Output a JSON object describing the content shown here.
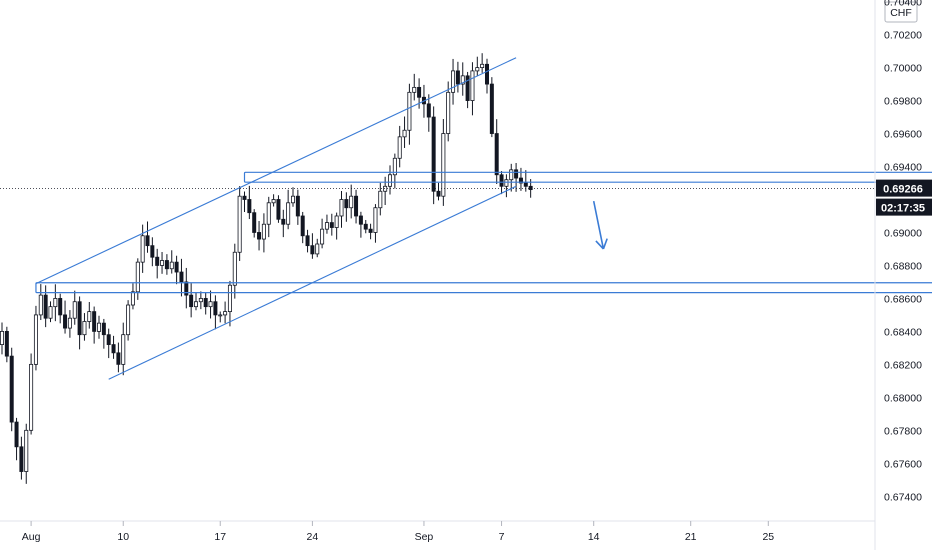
{
  "chart_data": {
    "type": "candlestick",
    "currency_label": "CHF",
    "current_price": "0.69266",
    "countdown": "02:17:35",
    "y_axis": {
      "range": [
        0.6725,
        0.7041
      ],
      "ticks": [
        "0.70400",
        "0.70200",
        "0.70000",
        "0.69800",
        "0.69600",
        "0.69400",
        "0.69000",
        "0.68800",
        "0.68600",
        "0.68400",
        "0.68200",
        "0.68000",
        "0.67800",
        "0.67600",
        "0.67400"
      ]
    },
    "x_axis": {
      "ticks": [
        {
          "label": "Aug",
          "bar": 6
        },
        {
          "label": "10",
          "bar": 25
        },
        {
          "label": "17",
          "bar": 45
        },
        {
          "label": "24",
          "bar": 64
        },
        {
          "label": "Sep",
          "bar": 87
        },
        {
          "label": "7",
          "bar": 103
        },
        {
          "label": "14",
          "bar": 122
        },
        {
          "label": "21",
          "bar": 142
        },
        {
          "label": "25",
          "bar": 158
        }
      ]
    },
    "closes": [
      0.684,
      0.6825,
      0.6785,
      0.677,
      0.6755,
      0.678,
      0.682,
      0.685,
      0.6862,
      0.6848,
      0.6855,
      0.686,
      0.685,
      0.6842,
      0.6848,
      0.6858,
      0.6838,
      0.6846,
      0.6852,
      0.684,
      0.6845,
      0.6838,
      0.6832,
      0.6827,
      0.682,
      0.6838,
      0.6856,
      0.6864,
      0.6882,
      0.6898,
      0.6892,
      0.6885,
      0.688,
      0.6883,
      0.6878,
      0.6882,
      0.6876,
      0.687,
      0.6862,
      0.6855,
      0.6858,
      0.686,
      0.6855,
      0.6858,
      0.685,
      0.685,
      0.6852,
      0.6868,
      0.6888,
      0.6922,
      0.692,
      0.6912,
      0.69,
      0.6896,
      0.6905,
      0.6918,
      0.692,
      0.6908,
      0.6905,
      0.6918,
      0.6922,
      0.691,
      0.6898,
      0.6892,
      0.6887,
      0.6893,
      0.6902,
      0.6906,
      0.6903,
      0.691,
      0.692,
      0.6915,
      0.6922,
      0.691,
      0.6905,
      0.6902,
      0.69,
      0.6915,
      0.6925,
      0.6928,
      0.6935,
      0.6945,
      0.6958,
      0.6962,
      0.6985,
      0.6988,
      0.6982,
      0.6978,
      0.697,
      0.6925,
      0.6922,
      0.696,
      0.6985,
      0.6998,
      0.699,
      0.6995,
      0.698,
      0.6998,
      0.7,
      0.7002,
      0.699,
      0.696,
      0.6935,
      0.6928,
      0.6932,
      0.6938,
      0.6933,
      0.693,
      0.6928,
      0.6926
    ],
    "price_zones": [
      {
        "top": 0.69365,
        "bottom": 0.69305,
        "from_bar": 50,
        "to_bar": 227
      },
      {
        "top": 0.68695,
        "bottom": 0.68635,
        "from_bar": 7,
        "to_bar": 197
      }
    ],
    "channel": {
      "upper": {
        "from": [
          7,
          0.6869
        ],
        "to": [
          106,
          0.7006
        ]
      },
      "lower": {
        "from": [
          22,
          0.6811
        ],
        "to": [
          106,
          0.6928
        ]
      }
    },
    "arrow": {
      "from": [
        122,
        0.6919
      ],
      "to": [
        124,
        0.689
      ]
    },
    "colors": {
      "candle": "#131722",
      "line": "#3a7bd5",
      "zone_fill": "#eef3fb",
      "price_label_bg": "#131722",
      "dotted": "#131722"
    }
  }
}
